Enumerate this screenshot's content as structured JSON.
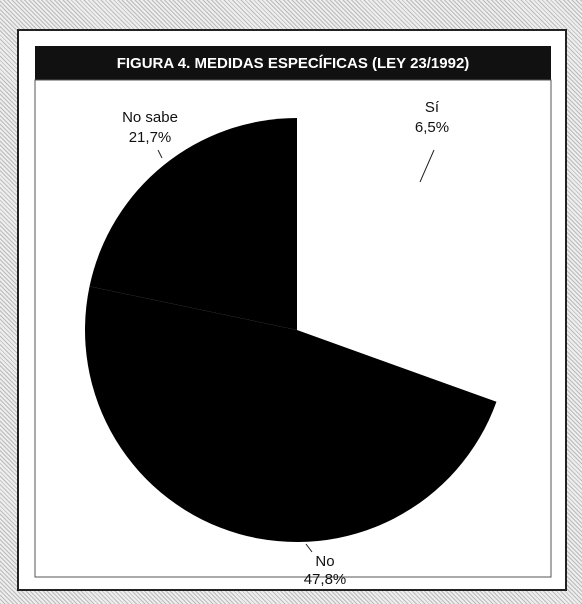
{
  "chart_data": {
    "type": "pie",
    "title": "FIGURA 4.  MEDIDAS ESPECÍFICAS (LEY 23/1992)",
    "categories": [
      "Sí",
      "No sabe",
      "No"
    ],
    "values": [
      6.5,
      21.7,
      47.8
    ],
    "value_labels": [
      "6,5%",
      "21,7%",
      "47,8%"
    ],
    "colors": [
      "#ffffff",
      "#000000",
      "#000000"
    ]
  }
}
